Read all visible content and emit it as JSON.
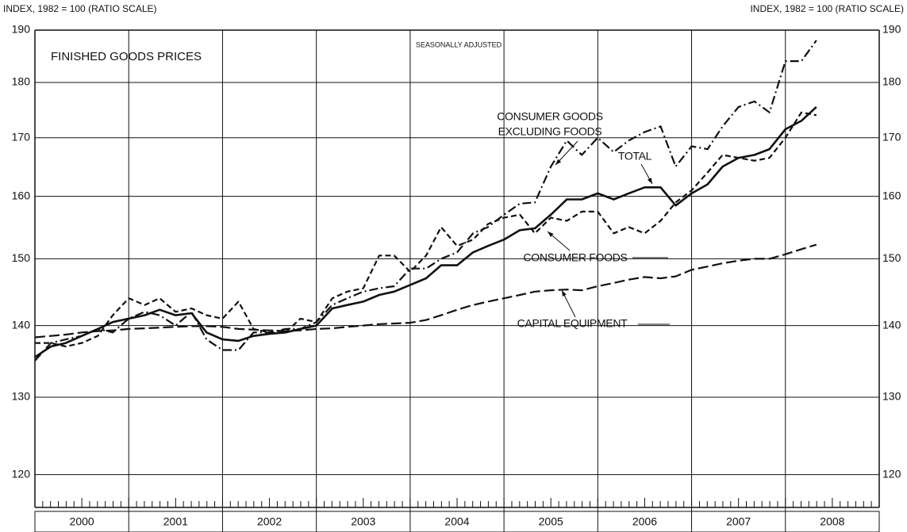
{
  "chart_data": {
    "type": "line",
    "title": "FINISHED GOODS PRICES",
    "subtitle": "SEASONALLY ADJUSTED",
    "y_axis_label": "INDEX, 1982 = 100  (RATIO SCALE)",
    "y2_axis_label": "INDEX, 1982 = 100  (RATIO SCALE)",
    "log_scale": true,
    "ylim": [
      116,
      190
    ],
    "yticks": [
      120,
      130,
      140,
      150,
      160,
      170,
      180,
      190
    ],
    "xlim": [
      2000,
      2009
    ],
    "xticks": [
      {
        "value": 2000.5,
        "label": "2000"
      },
      {
        "value": 2001.5,
        "label": "2001"
      },
      {
        "value": 2002.5,
        "label": "2002"
      },
      {
        "value": 2003.5,
        "label": "2003"
      },
      {
        "value": 2004.5,
        "label": "2004"
      },
      {
        "value": 2005.5,
        "label": "2005"
      },
      {
        "value": 2006.5,
        "label": "2006"
      },
      {
        "value": 2007.5,
        "label": "2007"
      },
      {
        "value": 2008.5,
        "label": "2008"
      }
    ],
    "xgrid": [
      2001,
      2002,
      2003,
      2004,
      2005,
      2006,
      2007,
      2008
    ],
    "grid": true,
    "x": [
      2000,
      2000.17,
      2000.33,
      2000.5,
      2000.67,
      2000.83,
      2001,
      2001.17,
      2001.33,
      2001.5,
      2001.67,
      2001.83,
      2002,
      2002.17,
      2002.33,
      2002.5,
      2002.67,
      2002.83,
      2003,
      2003.17,
      2003.33,
      2003.5,
      2003.67,
      2003.83,
      2004,
      2004.17,
      2004.33,
      2004.5,
      2004.67,
      2004.83,
      2005,
      2005.17,
      2005.33,
      2005.5,
      2005.67,
      2005.83,
      2006,
      2006.17,
      2006.33,
      2006.5,
      2006.67,
      2006.83,
      2007,
      2007.17,
      2007.33,
      2007.5,
      2007.67,
      2007.83,
      2008,
      2008.17,
      2008.33
    ],
    "series": [
      {
        "label_lines": [
          "CONSUMER GOODS",
          "EXCLUDING FOODS"
        ],
        "color": "#111",
        "dash": "11,4,2,4",
        "values": [
          135,
          137.5,
          138,
          138.5,
          139.5,
          139,
          141,
          142,
          141.5,
          140,
          142,
          138,
          136.5,
          136.5,
          139,
          139,
          139.5,
          139.5,
          140.5,
          143,
          144,
          145,
          145.5,
          145.8,
          148.5,
          148.5,
          150,
          151,
          154,
          155,
          157,
          158.8,
          159,
          165,
          169.5,
          167,
          170,
          167.5,
          169.5,
          171,
          172,
          165,
          168.5,
          168,
          172,
          175.5,
          176.5,
          174.5,
          184,
          184,
          188
        ]
      },
      {
        "label_lines": [
          "TOTAL"
        ],
        "color": "#111",
        "dash": "none",
        "values": [
          135.5,
          137,
          137.5,
          138.5,
          139.5,
          140.5,
          141,
          141.5,
          142.3,
          141.5,
          141.8,
          139,
          138,
          137.8,
          138.5,
          138.8,
          139,
          139.5,
          140,
          142.5,
          143,
          143.5,
          144.5,
          145,
          146,
          147,
          149,
          149,
          151,
          152,
          153,
          154.5,
          154.8,
          157,
          159.5,
          159.5,
          160.5,
          159.5,
          160.5,
          161.5,
          161.5,
          158.5,
          160.5,
          162,
          165,
          166.5,
          167,
          168,
          171.5,
          173,
          175.5
        ]
      },
      {
        "label_lines": [
          "CONSUMER FOODS"
        ],
        "color": "#111",
        "dash": "7,4",
        "values": [
          137.5,
          137.5,
          137,
          137.5,
          138.5,
          141.5,
          144,
          143,
          144,
          142,
          142.5,
          141.5,
          141,
          143.5,
          139.5,
          139,
          139,
          141,
          140.5,
          144,
          145,
          145.5,
          150.5,
          150.5,
          148,
          150.5,
          155,
          152,
          153,
          155.5,
          156.5,
          157,
          154,
          156.5,
          156,
          157.5,
          157.5,
          154,
          155,
          154,
          156,
          159,
          161,
          164,
          167,
          166.5,
          166,
          166.5,
          170,
          174.5,
          174
        ]
      },
      {
        "label_lines": [
          "CAPITAL EQUIPMENT"
        ],
        "color": "#111",
        "dash": "13,5",
        "values": [
          138.3,
          138.5,
          138.7,
          139,
          139.2,
          139.3,
          139.5,
          139.6,
          139.7,
          139.8,
          139.9,
          139.9,
          139.8,
          139.5,
          139.4,
          139.3,
          139.2,
          139.3,
          139.5,
          139.6,
          139.8,
          140,
          140.2,
          140.3,
          140.4,
          140.8,
          141.5,
          142.3,
          143,
          143.5,
          144,
          144.5,
          145,
          145.2,
          145.3,
          145.2,
          145.8,
          146.3,
          146.8,
          147.2,
          147,
          147.3,
          148.3,
          148.8,
          149.3,
          149.7,
          150,
          150,
          150.7,
          151.5,
          152.2
        ]
      }
    ]
  }
}
